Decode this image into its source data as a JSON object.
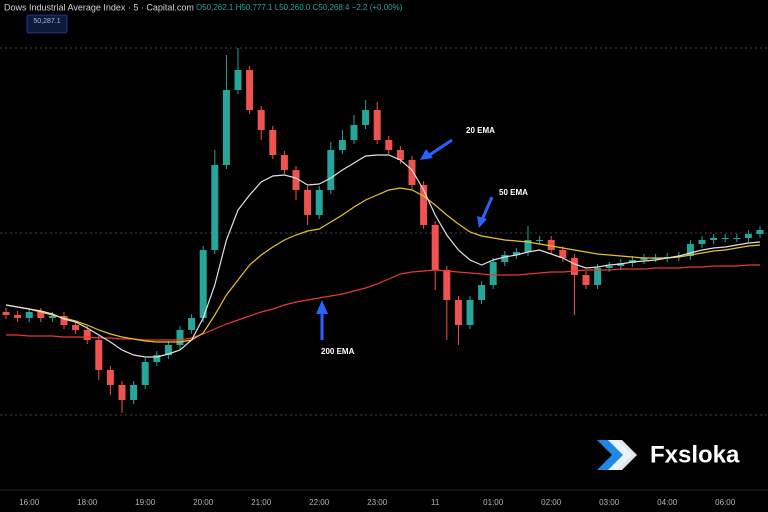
{
  "chart_data": {
    "type": "candlestick",
    "title": "Dows Industrial Average Index · 5 · Capital.com",
    "subtitle": "O50,262.1 H50,777.1 L50,260.0 C50,268.4 −2.2 (+0.00%)",
    "price_badge": "50,287.1",
    "watermark": "Fxsloka",
    "up_color": "#26a69a",
    "down_color": "#ef5350",
    "ylim": [
      50020,
      51000
    ],
    "categories": [
      null,
      null,
      "16:00",
      null,
      null,
      null,
      null,
      "18:00",
      null,
      null,
      null,
      null,
      "19:00",
      null,
      null,
      null,
      null,
      "20:00",
      null,
      null,
      null,
      null,
      "21:00",
      null,
      null,
      null,
      null,
      "22:00",
      null,
      null,
      null,
      null,
      "23:00",
      null,
      null,
      null,
      null,
      "11",
      null,
      null,
      null,
      null,
      "01:00",
      null,
      null,
      null,
      null,
      "02:00",
      null,
      null,
      null,
      null,
      "03:00",
      null,
      null,
      null,
      null,
      "04:00",
      null,
      null,
      null,
      null,
      "06:00",
      null,
      null,
      null
    ],
    "open": [
      50376,
      50370,
      50364,
      50376,
      50364,
      50368,
      50350,
      50340,
      50320,
      50260,
      50230,
      50200,
      50230,
      50276,
      50290,
      50310,
      50340,
      50364,
      50500,
      50670,
      50820,
      50860,
      50780,
      50740,
      50690,
      50660,
      50620,
      50570,
      50620,
      50700,
      50720,
      50750,
      50780,
      50720,
      50700,
      50680,
      50630,
      50550,
      50460,
      50400,
      50350,
      50400,
      50430,
      50476,
      50490,
      50496,
      50520,
      50520,
      50500,
      50484,
      50450,
      50430,
      50464,
      50468,
      50474,
      50480,
      50484,
      50484,
      50486,
      50488,
      50512,
      50520,
      50524,
      50524,
      50524,
      50532
    ],
    "high": [
      50384,
      50378,
      50384,
      50384,
      50376,
      50376,
      50358,
      50348,
      50328,
      50268,
      50238,
      50238,
      50284,
      50298,
      50318,
      50348,
      50372,
      50508,
      50700,
      50890,
      50904,
      50868,
      50788,
      50748,
      50698,
      50668,
      50628,
      50628,
      50716,
      50740,
      50770,
      50800,
      50796,
      50728,
      50708,
      50688,
      50638,
      50558,
      50468,
      50408,
      50408,
      50438,
      50484,
      50498,
      50504,
      50548,
      50528,
      50528,
      50508,
      50492,
      50458,
      50472,
      50476,
      50482,
      50488,
      50492,
      50492,
      50494,
      50496,
      50520,
      50528,
      50532,
      50532,
      50532,
      50540,
      50548
    ],
    "low": [
      50362,
      50356,
      50356,
      50356,
      50356,
      50342,
      50332,
      50312,
      50240,
      50210,
      50174,
      50192,
      50222,
      50268,
      50282,
      50302,
      50332,
      50356,
      50492,
      50662,
      50812,
      50772,
      50720,
      50682,
      50652,
      50600,
      50550,
      50562,
      50612,
      50692,
      50712,
      50742,
      50712,
      50692,
      50672,
      50622,
      50542,
      50420,
      50320,
      50310,
      50342,
      50392,
      50422,
      50468,
      50482,
      50488,
      50512,
      50492,
      50476,
      50370,
      50422,
      50422,
      50456,
      50460,
      50466,
      50472,
      50476,
      50476,
      50478,
      50480,
      50504,
      50512,
      50516,
      50516,
      50516,
      50524
    ],
    "close": [
      50370,
      50364,
      50376,
      50364,
      50368,
      50350,
      50340,
      50320,
      50260,
      50230,
      50200,
      50230,
      50276,
      50290,
      50310,
      50340,
      50364,
      50500,
      50670,
      50820,
      50860,
      50780,
      50740,
      50690,
      50660,
      50620,
      50570,
      50620,
      50700,
      50720,
      50750,
      50780,
      50720,
      50700,
      50680,
      50630,
      50550,
      50460,
      50400,
      50350,
      50400,
      50430,
      50476,
      50490,
      50496,
      50520,
      50520,
      50500,
      50484,
      50450,
      50430,
      50464,
      50468,
      50474,
      50480,
      50484,
      50484,
      50486,
      50488,
      50512,
      50520,
      50524,
      50524,
      50524,
      50532,
      50540
    ],
    "series": [
      {
        "name": "200 EMA",
        "color": "#e53935",
        "values": [
          50330,
          50330,
          50328,
          50328,
          50328,
          50326,
          50326,
          50326,
          50324,
          50324,
          50322,
          50322,
          50320,
          50320,
          50320,
          50320,
          50324,
          50332,
          50342,
          50352,
          50360,
          50368,
          50376,
          50382,
          50390,
          50396,
          50400,
          50404,
          50408,
          50412,
          50418,
          50424,
          50432,
          50442,
          50452,
          50456,
          50458,
          50460,
          50458,
          50456,
          50454,
          50452,
          50450,
          50450,
          50450,
          50452,
          50454,
          50456,
          50456,
          50458,
          50460,
          50460,
          50460,
          50462,
          50462,
          50462,
          50464,
          50464,
          50464,
          50466,
          50466,
          50468,
          50468,
          50468,
          50470,
          50470
        ]
      },
      {
        "name": "50 EMA",
        "color": "#e6c229",
        "values": [
          50390,
          50386,
          50382,
          50376,
          50370,
          50364,
          50358,
          50350,
          50340,
          50332,
          50326,
          50322,
          50318,
          50316,
          50316,
          50316,
          50320,
          50334,
          50370,
          50410,
          50440,
          50470,
          50490,
          50506,
          50520,
          50530,
          50538,
          50542,
          50556,
          50570,
          50586,
          50600,
          50610,
          50620,
          50624,
          50620,
          50608,
          50590,
          50570,
          50552,
          50536,
          50528,
          50524,
          50520,
          50518,
          50516,
          50512,
          50508,
          50504,
          50500,
          50496,
          50492,
          50490,
          50488,
          50486,
          50484,
          50484,
          50484,
          50486,
          50490,
          50494,
          50498,
          50500,
          50504,
          50508,
          50510
        ]
      },
      {
        "name": "20 EMA",
        "color": "#e0e0e0",
        "values": [
          50390,
          50386,
          50382,
          50378,
          50372,
          50362,
          50356,
          50344,
          50330,
          50316,
          50300,
          50290,
          50286,
          50286,
          50292,
          50300,
          50320,
          50364,
          50430,
          50520,
          50580,
          50610,
          50636,
          50648,
          50650,
          50644,
          50630,
          50632,
          50644,
          50660,
          50674,
          50688,
          50690,
          50690,
          50680,
          50660,
          50620,
          50570,
          50530,
          50500,
          50480,
          50470,
          50480,
          50486,
          50490,
          50496,
          50500,
          50492,
          50484,
          50472,
          50464,
          50466,
          50470,
          50472,
          50476,
          50478,
          50480,
          50484,
          50488,
          50494,
          50500,
          50504,
          50506,
          50510,
          50514,
          50516
        ]
      }
    ]
  }
}
